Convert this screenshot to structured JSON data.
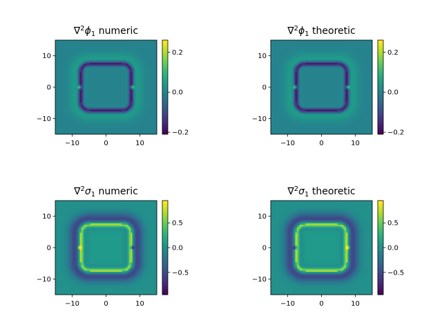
{
  "colors": {
    "viridis": [
      "#440154",
      "#482878",
      "#3e4989",
      "#31688e",
      "#26828e",
      "#1f9e89",
      "#35b779",
      "#6ece58",
      "#b5de2b",
      "#fde725"
    ]
  },
  "chart_data": [
    {
      "type": "heatmap",
      "title_parts": [
        "∇",
        "2",
        "ϕ",
        "1",
        " numeric"
      ],
      "xlim": [
        -15,
        15
      ],
      "ylim": [
        -15,
        15
      ],
      "xticks": [
        -10,
        0,
        10
      ],
      "yticks": [
        -10,
        0,
        10
      ],
      "xtick_labels": [
        "−10",
        "0",
        "10"
      ],
      "ytick_labels": [
        "−10",
        "0",
        "10"
      ],
      "colorbar": {
        "range": [
          -0.21,
          0.26
        ],
        "ticks": [
          -0.2,
          0.0,
          0.2
        ],
        "tick_labels": [
          "−0.2",
          "0.0",
          "0.2"
        ]
      },
      "pattern": {
        "background": 0.0,
        "shape": "rounded square ring",
        "ring_half_width": 7.5,
        "ring_corner_radius": 2.6,
        "ring_value": -0.18,
        "ring_thickness": 0.55,
        "halo_value": 0.05,
        "halo_thickness": 1.6,
        "point_sources": [
          {
            "x": -7.8,
            "y": 0,
            "value": 0.26
          },
          {
            "x": 7.8,
            "y": 0,
            "value": 0.26
          }
        ]
      }
    },
    {
      "type": "heatmap",
      "title_parts": [
        "∇",
        "2",
        "ϕ",
        "1",
        " theoretic"
      ],
      "xlim": [
        -15,
        15
      ],
      "ylim": [
        -15,
        15
      ],
      "xticks": [
        -10,
        0,
        10
      ],
      "yticks": [
        -10,
        0,
        10
      ],
      "xtick_labels": [
        "−10",
        "0",
        "10"
      ],
      "ytick_labels": [
        "−10",
        "0",
        "10"
      ],
      "colorbar": {
        "range": [
          -0.21,
          0.26
        ],
        "ticks": [
          -0.2,
          0.0,
          0.2
        ],
        "tick_labels": [
          "−0.2",
          "0.0",
          "0.2"
        ]
      },
      "pattern": {
        "background": 0.0,
        "shape": "rounded square ring",
        "ring_half_width": 7.5,
        "ring_corner_radius": 2.6,
        "ring_value": -0.18,
        "ring_thickness": 0.55,
        "halo_value": 0.05,
        "halo_thickness": 1.6,
        "point_sources": [
          {
            "x": -7.8,
            "y": 0,
            "value": 0.26
          },
          {
            "x": 7.8,
            "y": 0,
            "value": 0.26
          }
        ]
      }
    },
    {
      "type": "heatmap",
      "title_parts": [
        "∇",
        "2",
        "σ",
        "1",
        " numeric"
      ],
      "xlim": [
        -15,
        15
      ],
      "ylim": [
        -15,
        15
      ],
      "xticks": [
        -10,
        0,
        10
      ],
      "yticks": [
        -10,
        0,
        10
      ],
      "xtick_labels": [
        "−10",
        "0",
        "10"
      ],
      "ytick_labels": [
        "−10",
        "0",
        "10"
      ],
      "colorbar": {
        "range": [
          -0.95,
          0.95
        ],
        "ticks": [
          -0.5,
          0.0,
          0.5
        ],
        "tick_labels": [
          "−0.5",
          "0.0",
          "0.5"
        ]
      },
      "pattern": {
        "background": 0.0,
        "shape": "rounded square ring",
        "ring_half_width": 7.5,
        "ring_corner_radius": 2.6,
        "ring_value": 0.72,
        "ring_thickness": 0.7,
        "halo_value": -0.6,
        "halo_thickness": 1.6,
        "inner_value": 0.08,
        "point_sources": [
          {
            "x": -7.8,
            "y": 0,
            "value": 0.9
          },
          {
            "x": 7.8,
            "y": 0,
            "value": -0.9
          }
        ]
      }
    },
    {
      "type": "heatmap",
      "title_parts": [
        "∇",
        "2",
        "σ",
        "1",
        " theoretic"
      ],
      "xlim": [
        -15,
        15
      ],
      "ylim": [
        -15,
        15
      ],
      "xticks": [
        -10,
        0,
        10
      ],
      "yticks": [
        -10,
        0,
        10
      ],
      "xtick_labels": [
        "−10",
        "0",
        "10"
      ],
      "ytick_labels": [
        "−10",
        "0",
        "10"
      ],
      "colorbar": {
        "range": [
          -0.95,
          0.95
        ],
        "ticks": [
          -0.5,
          0.0,
          0.5
        ],
        "tick_labels": [
          "−0.5",
          "0.0",
          "0.5"
        ]
      },
      "pattern": {
        "background": 0.0,
        "shape": "rounded square ring",
        "ring_half_width": 7.5,
        "ring_corner_radius": 2.6,
        "ring_value": 0.72,
        "ring_thickness": 0.7,
        "halo_value": -0.6,
        "halo_thickness": 1.6,
        "inner_value": 0.08,
        "point_sources": [
          {
            "x": -7.8,
            "y": 0,
            "value": -0.9
          },
          {
            "x": 7.8,
            "y": 0,
            "value": 0.9
          }
        ]
      }
    }
  ]
}
